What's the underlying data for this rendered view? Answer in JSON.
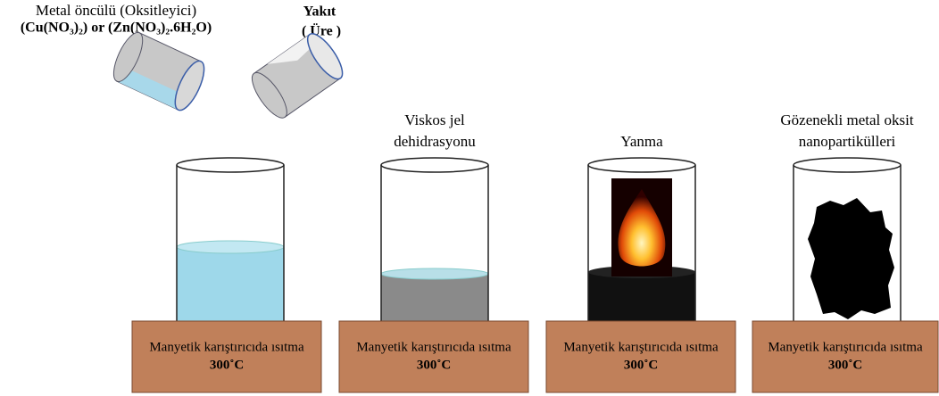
{
  "reagents": [
    {
      "label": "Metal öncülü (Oksitleyici)",
      "formula": "(Cu(NO₃)₂) or (Zn(NO₃)₂.6H₂O)"
    },
    {
      "label": "Yakıt",
      "formula": "( Üre )"
    }
  ],
  "stages": [
    {
      "plate_label": "Manyetik karıştırıcıda ısıtma",
      "temperature": "300˚C"
    },
    {
      "title": [
        "Viskos jel",
        "dehidrasyonu"
      ],
      "plate_label": "Manyetik karıştırıcıda ısıtma",
      "temperature": "300˚C"
    },
    {
      "title": [
        "Yanma"
      ],
      "plate_label": "Manyetik karıştırıcıda ısıtma",
      "temperature": "300˚C"
    },
    {
      "title": [
        "Gözenekli metal oksit",
        "nanopartikülleri"
      ],
      "plate_label": "Manyetik karıştırıcıda ısıtma",
      "temperature": "300˚C"
    }
  ]
}
